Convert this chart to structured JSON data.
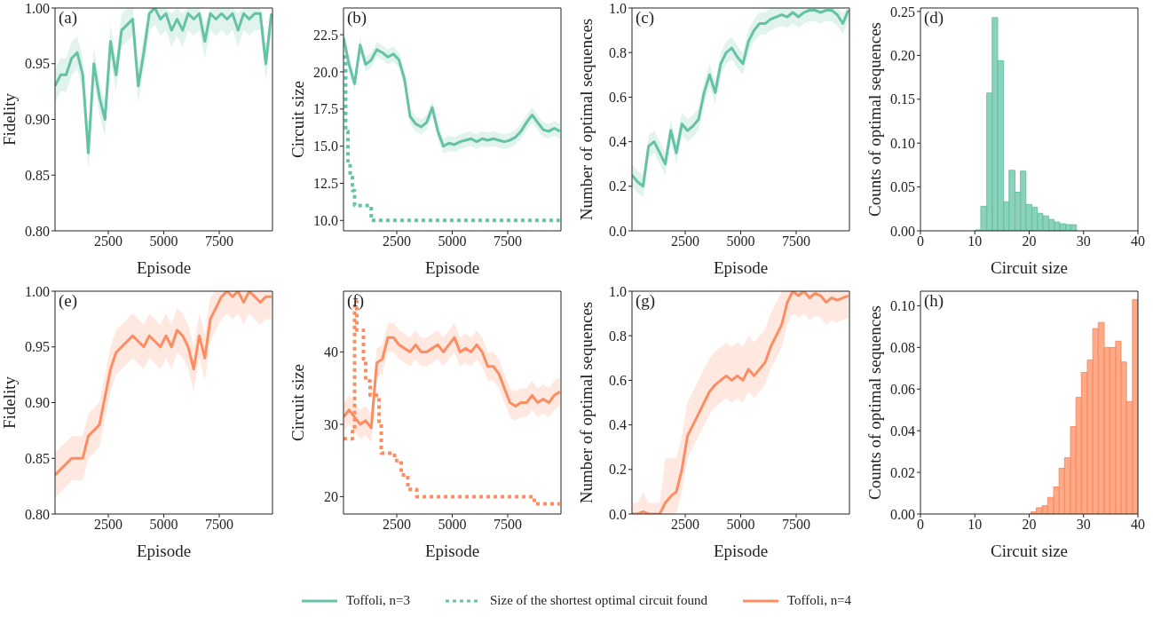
{
  "chart_data": [
    {
      "type": "line",
      "title": "(a)",
      "xlabel": "Episode",
      "ylabel": "Fidelity",
      "legend": "bottom",
      "xlim": [
        100,
        9900
      ],
      "xticks": [
        2500,
        5000,
        7500
      ],
      "ylim": [
        0.8,
        1.0
      ],
      "yticks": [
        {
          "value": 0.8,
          "label": "0.80"
        },
        {
          "value": 0.85,
          "label": "0.85"
        },
        {
          "value": 0.9,
          "label": "0.90"
        },
        {
          "value": 0.95,
          "label": "0.95"
        },
        {
          "value": 1.0,
          "label": "1.00"
        }
      ],
      "x": [
        100,
        350,
        600,
        850,
        1100,
        1350,
        1600,
        1850,
        2100,
        2350,
        2600,
        2850,
        3100,
        3350,
        3600,
        3850,
        4100,
        4350,
        4600,
        4850,
        5100,
        5350,
        5600,
        5850,
        6100,
        6350,
        6600,
        6850,
        7100,
        7350,
        7600,
        7850,
        8100,
        8350,
        8600,
        8850,
        9100,
        9350,
        9600,
        9850
      ],
      "series": [
        {
          "name": "Toffoli, n=3",
          "color": "#66c2a5",
          "values": [
            0.93,
            0.94,
            0.94,
            0.955,
            0.96,
            0.94,
            0.87,
            0.95,
            0.92,
            0.9,
            0.97,
            0.94,
            0.98,
            0.985,
            0.99,
            0.93,
            0.96,
            0.995,
            1.0,
            0.99,
            0.995,
            0.98,
            0.99,
            0.98,
            0.995,
            0.99,
            0.995,
            0.97,
            0.995,
            0.99,
            0.995,
            0.99,
            0.995,
            0.98,
            0.995,
            0.99,
            0.995,
            0.995,
            0.95,
            0.995
          ],
          "lower": [
            0.915,
            0.925,
            0.925,
            0.94,
            0.945,
            0.925,
            0.855,
            0.935,
            0.905,
            0.885,
            0.955,
            0.925,
            0.965,
            0.97,
            0.975,
            0.915,
            0.945,
            0.98,
            0.985,
            0.975,
            0.98,
            0.965,
            0.975,
            0.965,
            0.98,
            0.975,
            0.98,
            0.955,
            0.98,
            0.975,
            0.98,
            0.975,
            0.98,
            0.965,
            0.98,
            0.975,
            0.98,
            0.98,
            0.935,
            0.98
          ],
          "upper": [
            0.945,
            0.955,
            0.955,
            0.97,
            0.975,
            0.955,
            0.885,
            0.965,
            0.935,
            0.915,
            0.985,
            0.955,
            0.995,
            1,
            1,
            0.945,
            0.975,
            1,
            1,
            1,
            1,
            0.995,
            1,
            0.995,
            1,
            1,
            1,
            0.985,
            1,
            1,
            1,
            1,
            1,
            0.995,
            1,
            1,
            1,
            1,
            0.965,
            1
          ]
        }
      ]
    },
    {
      "type": "line",
      "title": "(b)",
      "xlabel": "Episode",
      "ylabel": "Circuit size",
      "legend": "bottom",
      "xlim": [
        100,
        9900
      ],
      "xticks": [
        2500,
        5000,
        7500
      ],
      "ylim": [
        9.3,
        24.3
      ],
      "yticks": [
        {
          "value": 10,
          "label": "10.0"
        },
        {
          "value": 12.5,
          "label": "12.5"
        },
        {
          "value": 15,
          "label": "15.0"
        },
        {
          "value": 17.5,
          "label": "17.5"
        },
        {
          "value": 20,
          "label": "20.0"
        },
        {
          "value": 22.5,
          "label": "22.5"
        }
      ],
      "x": [
        100,
        350,
        600,
        850,
        1100,
        1350,
        1600,
        1850,
        2100,
        2350,
        2600,
        2850,
        3100,
        3350,
        3600,
        3850,
        4100,
        4350,
        4600,
        4850,
        5100,
        5350,
        5600,
        5850,
        6100,
        6350,
        6600,
        6850,
        7100,
        7350,
        7600,
        7850,
        8100,
        8350,
        8600,
        8850,
        9100,
        9350,
        9600,
        9850
      ],
      "series": [
        {
          "color": "#66c2a5",
          "values": [
            22.3,
            20.5,
            19.2,
            21.8,
            20.5,
            20.8,
            21.5,
            21.3,
            21,
            21.2,
            20.8,
            19.5,
            17,
            16.5,
            16.3,
            16.6,
            17.6,
            16,
            15,
            15.2,
            15.1,
            15.3,
            15.4,
            15.5,
            15.3,
            15.5,
            15.4,
            15.5,
            15.4,
            15.3,
            15.4,
            15.6,
            16,
            16.6,
            17.1,
            16.6,
            16.1,
            16,
            16.2,
            16
          ],
          "lower": [
            21.8,
            20,
            18.7,
            21.3,
            20,
            20.3,
            21,
            20.8,
            20.5,
            20.7,
            20.3,
            19,
            16.5,
            16,
            15.8,
            16.1,
            17.1,
            15.5,
            14.5,
            14.7,
            14.6,
            14.8,
            14.9,
            15,
            14.8,
            15,
            14.9,
            15,
            14.9,
            14.8,
            14.9,
            15.1,
            15.5,
            16.1,
            16.6,
            16.1,
            15.6,
            15.5,
            15.7,
            15.5
          ],
          "upper": [
            22.8,
            21,
            19.7,
            22.3,
            21,
            21.3,
            22,
            21.8,
            21.5,
            21.7,
            21.3,
            20,
            17.5,
            17,
            16.8,
            17.1,
            18.1,
            16.5,
            15.5,
            15.7,
            15.6,
            15.8,
            15.9,
            16,
            15.8,
            16,
            15.9,
            16,
            15.9,
            15.8,
            15.9,
            16.1,
            16.5,
            17.1,
            17.6,
            17.1,
            16.6,
            16.5,
            16.7,
            16.5
          ]
        },
        {
          "name": "Size of the shortest optimal circuit found",
          "type": "step",
          "line_style": "dotted",
          "color": "#66c2a5",
          "x": [
            100,
            200,
            300,
            400,
            500,
            600,
            1300,
            1350,
            9850
          ],
          "values": [
            21,
            16,
            14,
            13,
            12,
            11,
            11,
            10,
            10
          ]
        }
      ]
    },
    {
      "type": "line",
      "title": "(c)",
      "xlabel": "Episode",
      "ylabel": "Number of optimal sequences",
      "xlim": [
        100,
        9900
      ],
      "xticks": [
        2500,
        5000,
        7500
      ],
      "ylim": [
        0,
        1
      ],
      "yticks": [
        {
          "value": 0,
          "label": "0.0"
        },
        {
          "value": 0.2,
          "label": "0.2"
        },
        {
          "value": 0.4,
          "label": "0.4"
        },
        {
          "value": 0.6,
          "label": "0.6"
        },
        {
          "value": 0.8,
          "label": "0.8"
        },
        {
          "value": 1,
          "label": "1.0"
        }
      ],
      "x": [
        100,
        350,
        600,
        850,
        1100,
        1350,
        1600,
        1850,
        2100,
        2350,
        2600,
        2850,
        3100,
        3350,
        3600,
        3850,
        4100,
        4350,
        4600,
        4850,
        5100,
        5350,
        5600,
        5850,
        6100,
        6350,
        6600,
        6850,
        7100,
        7350,
        7600,
        7850,
        8100,
        8350,
        8600,
        8850,
        9100,
        9350,
        9600,
        9850
      ],
      "series": [
        {
          "color": "#66c2a5",
          "values": [
            0.25,
            0.22,
            0.2,
            0.38,
            0.4,
            0.35,
            0.3,
            0.45,
            0.35,
            0.48,
            0.45,
            0.47,
            0.5,
            0.62,
            0.7,
            0.62,
            0.75,
            0.8,
            0.82,
            0.78,
            0.75,
            0.85,
            0.9,
            0.93,
            0.93,
            0.95,
            0.96,
            0.97,
            0.96,
            0.98,
            0.96,
            0.98,
            0.99,
            0.99,
            0.98,
            0.99,
            0.99,
            0.97,
            0.93,
            0.99
          ],
          "lower": [
            0.2,
            0.17,
            0.15,
            0.33,
            0.35,
            0.3,
            0.25,
            0.4,
            0.3,
            0.43,
            0.4,
            0.42,
            0.45,
            0.57,
            0.65,
            0.57,
            0.7,
            0.75,
            0.77,
            0.73,
            0.7,
            0.8,
            0.85,
            0.88,
            0.88,
            0.9,
            0.91,
            0.92,
            0.91,
            0.93,
            0.91,
            0.93,
            0.94,
            0.94,
            0.93,
            0.94,
            0.94,
            0.92,
            0.88,
            0.94
          ],
          "upper": [
            0.3,
            0.27,
            0.25,
            0.43,
            0.45,
            0.4,
            0.35,
            0.5,
            0.4,
            0.53,
            0.5,
            0.52,
            0.55,
            0.67,
            0.75,
            0.67,
            0.8,
            0.85,
            0.87,
            0.83,
            0.8,
            0.9,
            0.95,
            0.98,
            0.98,
            1,
            1,
            1,
            1,
            1,
            1,
            1,
            1,
            1,
            1,
            1,
            1,
            1,
            0.98,
            1
          ]
        }
      ]
    },
    {
      "type": "histogram",
      "title": "(d)",
      "xlabel": "Circuit size",
      "ylabel": "Counts of optimal sequences",
      "color": "#66c2a5",
      "xlim": [
        0,
        40
      ],
      "xticks": [
        0,
        10,
        20,
        30,
        40
      ],
      "ylim": [
        0,
        0.254
      ],
      "yticks": [
        {
          "value": 0,
          "label": "0.00"
        },
        {
          "value": 0.05,
          "label": "0.05"
        },
        {
          "value": 0.1,
          "label": "0.10"
        },
        {
          "value": 0.15,
          "label": "0.15"
        },
        {
          "value": 0.2,
          "label": "0.20"
        },
        {
          "value": 0.25,
          "label": "0.25"
        }
      ],
      "bins": [
        10.1,
        11.1,
        12.2,
        13.2,
        14.2,
        15.3,
        16.3,
        17.4,
        18.4,
        19.4,
        20.5,
        21.5,
        22.5,
        23.6,
        24.6,
        25.6,
        26.7,
        27.7,
        28.7
      ],
      "values": [
        0.001,
        0.028,
        0.157,
        0.243,
        0.194,
        0.033,
        0.069,
        0.044,
        0.068,
        0.03,
        0.027,
        0.02,
        0.017,
        0.013,
        0.01,
        0.008,
        0.007,
        0.007
      ]
    },
    {
      "type": "line",
      "title": "(e)",
      "xlabel": "Episode",
      "ylabel": "Fidelity",
      "legend": "bottom",
      "xlim": [
        100,
        9900
      ],
      "xticks": [
        2500,
        5000,
        7500
      ],
      "ylim": [
        0.8,
        1.0
      ],
      "yticks": [
        {
          "value": 0.8,
          "label": "0.80"
        },
        {
          "value": 0.85,
          "label": "0.85"
        },
        {
          "value": 0.9,
          "label": "0.90"
        },
        {
          "value": 0.95,
          "label": "0.95"
        },
        {
          "value": 1.0,
          "label": "1.00"
        }
      ],
      "x": [
        100,
        350,
        600,
        850,
        1100,
        1350,
        1600,
        1850,
        2100,
        2350,
        2600,
        2850,
        3100,
        3350,
        3600,
        3850,
        4100,
        4350,
        4600,
        4850,
        5100,
        5350,
        5600,
        5850,
        6100,
        6350,
        6600,
        6850,
        7100,
        7350,
        7600,
        7850,
        8100,
        8350,
        8600,
        8850,
        9100,
        9350,
        9600,
        9850
      ],
      "series": [
        {
          "name": "Toffoli, n=4",
          "color": "#fc8d62",
          "values": [
            0.835,
            0.84,
            0.845,
            0.85,
            0.85,
            0.85,
            0.87,
            0.875,
            0.88,
            0.905,
            0.93,
            0.945,
            0.95,
            0.955,
            0.96,
            0.955,
            0.95,
            0.96,
            0.955,
            0.95,
            0.96,
            0.95,
            0.965,
            0.96,
            0.95,
            0.93,
            0.96,
            0.94,
            0.975,
            0.985,
            0.995,
            1,
            0.995,
            1,
            0.99,
            1,
            0.995,
            0.99,
            0.995,
            0.995
          ],
          "lower": [
            0.815,
            0.82,
            0.825,
            0.83,
            0.83,
            0.83,
            0.85,
            0.855,
            0.86,
            0.885,
            0.91,
            0.925,
            0.93,
            0.935,
            0.94,
            0.935,
            0.93,
            0.94,
            0.935,
            0.93,
            0.94,
            0.93,
            0.945,
            0.94,
            0.93,
            0.91,
            0.94,
            0.92,
            0.955,
            0.965,
            0.975,
            0.98,
            0.975,
            0.98,
            0.97,
            0.98,
            0.975,
            0.97,
            0.975,
            0.975
          ],
          "upper": [
            0.855,
            0.86,
            0.865,
            0.87,
            0.87,
            0.87,
            0.89,
            0.895,
            0.9,
            0.925,
            0.95,
            0.965,
            0.97,
            0.975,
            0.98,
            0.975,
            0.97,
            0.98,
            0.975,
            0.97,
            0.98,
            0.97,
            0.985,
            0.98,
            0.97,
            0.95,
            0.98,
            0.96,
            0.995,
            1,
            1,
            1,
            1,
            1,
            1,
            1,
            1,
            1,
            1,
            1
          ]
        }
      ]
    },
    {
      "type": "line",
      "title": "(f)",
      "xlabel": "Episode",
      "ylabel": "Circuit size",
      "xlim": [
        100,
        9900
      ],
      "xticks": [
        2500,
        5000,
        7500
      ],
      "ylim": [
        17.6,
        48.4
      ],
      "yticks": [
        20,
        30,
        40
      ],
      "x": [
        100,
        350,
        600,
        850,
        1100,
        1350,
        1600,
        1850,
        2100,
        2350,
        2600,
        2850,
        3100,
        3350,
        3600,
        3850,
        4100,
        4350,
        4600,
        4850,
        5100,
        5350,
        5600,
        5850,
        6100,
        6350,
        6600,
        6850,
        7100,
        7350,
        7600,
        7850,
        8100,
        8350,
        8600,
        8850,
        9100,
        9350,
        9600,
        9850
      ],
      "series": [
        {
          "color": "#fc8d62",
          "values": [
            31,
            32,
            31,
            30,
            30.5,
            29.5,
            38.5,
            39,
            42,
            42,
            41,
            40.5,
            40,
            41,
            40,
            40,
            40.5,
            41,
            40,
            41,
            42,
            40,
            40.5,
            40,
            41,
            40,
            38,
            38,
            37,
            35,
            33,
            32.5,
            33,
            33,
            34,
            33,
            33.5,
            33,
            34,
            34.5
          ],
          "lower": [
            29,
            30,
            29,
            28,
            28.5,
            27.5,
            36.5,
            37,
            40,
            40,
            39,
            38.5,
            38,
            39,
            38,
            38,
            38.5,
            39,
            38,
            39,
            40,
            38,
            38.5,
            38,
            39,
            38,
            36,
            36,
            35,
            33,
            31,
            30.5,
            31,
            31,
            32,
            31,
            31.5,
            31,
            32,
            32.5
          ],
          "upper": [
            33,
            34,
            33,
            32,
            32.5,
            31.5,
            40.5,
            41,
            44,
            44,
            43,
            42.5,
            42,
            43,
            42,
            42,
            42.5,
            43,
            42,
            43,
            44,
            42,
            42.5,
            42,
            43,
            42,
            40,
            40,
            39,
            37,
            35,
            34.5,
            35,
            35,
            36,
            35,
            35.5,
            35,
            36,
            36.5
          ]
        },
        {
          "type": "step",
          "line_style": "dotted",
          "color": "#fc8d62",
          "x": [
            100,
            500,
            600,
            700,
            1000,
            1100,
            1300,
            1400,
            1700,
            1800,
            2000,
            2400,
            2700,
            3000,
            3400,
            8600,
            8700,
            9850
          ],
          "values": [
            28,
            29,
            47,
            43,
            39,
            36,
            34,
            34,
            30,
            26,
            26,
            25,
            23,
            21,
            20,
            20,
            19,
            19
          ]
        }
      ]
    },
    {
      "type": "line",
      "title": "(g)",
      "xlabel": "Episode",
      "ylabel": "Number of optimal sequences",
      "xlim": [
        100,
        9900
      ],
      "xticks": [
        2500,
        5000,
        7500
      ],
      "ylim": [
        0,
        1
      ],
      "yticks": [
        {
          "value": 0,
          "label": "0.0"
        },
        {
          "value": 0.2,
          "label": "0.2"
        },
        {
          "value": 0.4,
          "label": "0.4"
        },
        {
          "value": 0.6,
          "label": "0.6"
        },
        {
          "value": 0.8,
          "label": "0.8"
        },
        {
          "value": 1,
          "label": "1.0"
        }
      ],
      "x": [
        100,
        350,
        600,
        850,
        1100,
        1350,
        1600,
        1850,
        2100,
        2350,
        2600,
        2850,
        3100,
        3350,
        3600,
        3850,
        4100,
        4350,
        4600,
        4850,
        5100,
        5350,
        5600,
        5850,
        6100,
        6350,
        6600,
        6850,
        7100,
        7350,
        7600,
        7850,
        8100,
        8350,
        8600,
        8850,
        9100,
        9350,
        9600,
        9850
      ],
      "series": [
        {
          "color": "#fc8d62",
          "values": [
            0,
            0,
            0.01,
            0,
            0,
            0,
            0.05,
            0.08,
            0.1,
            0.2,
            0.35,
            0.4,
            0.45,
            0.5,
            0.55,
            0.58,
            0.6,
            0.62,
            0.6,
            0.62,
            0.6,
            0.65,
            0.62,
            0.65,
            0.68,
            0.75,
            0.8,
            0.85,
            0.95,
            1,
            0.98,
            1,
            0.97,
            0.99,
            0.98,
            0.95,
            0.97,
            0.96,
            0.97,
            0.98
          ],
          "lower": [
            0,
            0,
            0,
            0,
            0,
            0,
            0,
            0,
            0,
            0.1,
            0.25,
            0.3,
            0.35,
            0.4,
            0.45,
            0.48,
            0.5,
            0.52,
            0.5,
            0.52,
            0.5,
            0.55,
            0.52,
            0.55,
            0.58,
            0.65,
            0.7,
            0.75,
            0.85,
            0.9,
            0.88,
            0.9,
            0.87,
            0.89,
            0.88,
            0.85,
            0.87,
            0.86,
            0.87,
            0.88
          ],
          "upper": [
            0.05,
            0.05,
            0.1,
            0.05,
            0.05,
            0.05,
            0.25,
            0.25,
            0.25,
            0.35,
            0.5,
            0.55,
            0.6,
            0.65,
            0.7,
            0.73,
            0.75,
            0.77,
            0.75,
            0.77,
            0.75,
            0.8,
            0.77,
            0.8,
            0.83,
            0.9,
            0.95,
            1,
            1,
            1,
            1,
            1,
            1,
            1,
            1,
            1,
            1,
            1,
            1,
            1
          ]
        }
      ]
    },
    {
      "type": "histogram",
      "title": "(h)",
      "xlabel": "Circuit size",
      "ylabel": "Counts of optimal sequences",
      "color": "#fc8d62",
      "xlim": [
        0,
        40
      ],
      "xticks": [
        0,
        10,
        20,
        30,
        40
      ],
      "ylim": [
        0,
        0.107
      ],
      "yticks": [
        {
          "value": 0,
          "label": "0.00"
        },
        {
          "value": 0.02,
          "label": "0.02"
        },
        {
          "value": 0.04,
          "label": "0.04"
        },
        {
          "value": 0.06,
          "label": "0.06"
        },
        {
          "value": 0.08,
          "label": "0.08"
        },
        {
          "value": 0.1,
          "label": "0.10"
        }
      ],
      "bins": [
        20.3,
        21.3,
        22.4,
        23.4,
        24.5,
        25.5,
        26.5,
        27.6,
        28.6,
        29.6,
        30.7,
        31.7,
        32.7,
        33.8,
        34.8,
        35.9,
        36.9,
        37.9,
        39.0,
        40.0
      ],
      "values": [
        0.001,
        0.003,
        0.004,
        0.008,
        0.013,
        0.022,
        0.027,
        0.042,
        0.056,
        0.068,
        0.074,
        0.089,
        0.092,
        0.08,
        0.08,
        0.083,
        0.073,
        0.054,
        0.103
      ]
    }
  ]
}
